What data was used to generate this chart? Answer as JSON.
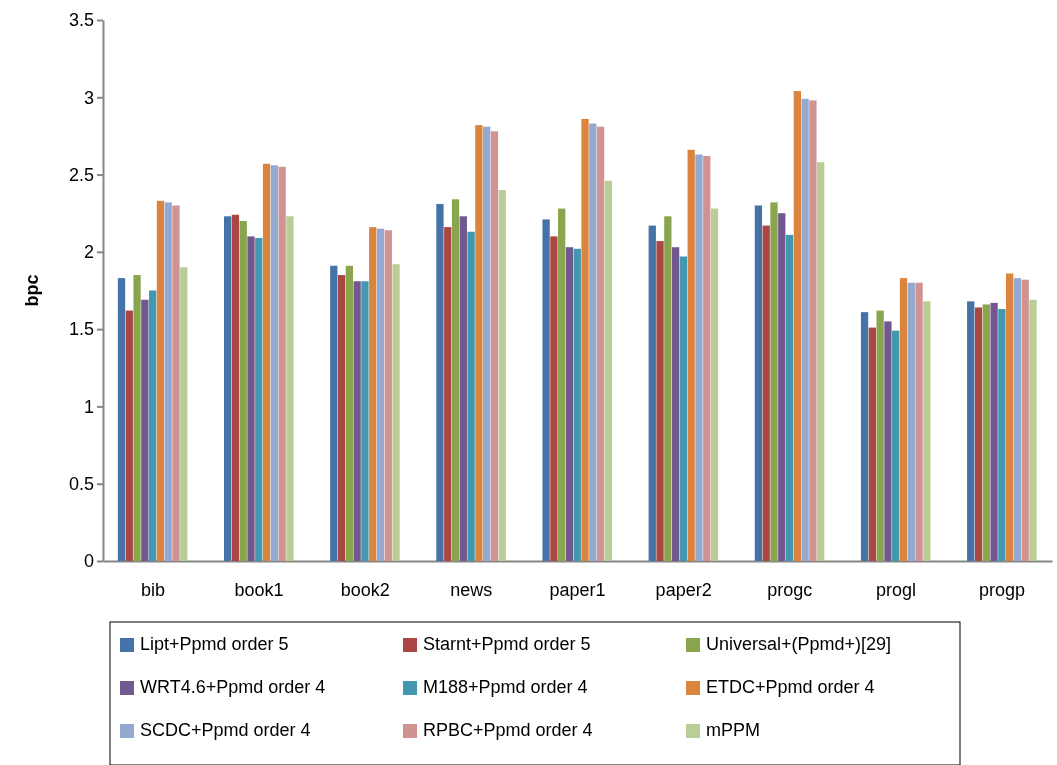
{
  "chart_data": {
    "type": "bar",
    "ylabel": "bpc",
    "categories": [
      "bib",
      "book1",
      "book2",
      "news",
      "paper1",
      "paper2",
      "progc",
      "progl",
      "progp"
    ],
    "ylim": [
      0,
      3.5
    ],
    "yticks": [
      0,
      0.5,
      1,
      1.5,
      2,
      2.5,
      3,
      3.5
    ],
    "grid": false,
    "legend": "bottom",
    "series": [
      {
        "name": "Lipt+Ppmd order 5",
        "color": "#4572a7",
        "values": [
          1.83,
          2.23,
          1.91,
          2.31,
          2.21,
          2.17,
          2.3,
          1.61,
          1.68
        ]
      },
      {
        "name": "Starnt+Ppmd order 5",
        "color": "#aa4643",
        "values": [
          1.62,
          2.24,
          1.85,
          2.16,
          2.1,
          2.07,
          2.17,
          1.51,
          1.64
        ]
      },
      {
        "name": "Universal+(Ppmd+)[29]",
        "color": "#89a54e",
        "values": [
          1.85,
          2.2,
          1.91,
          2.34,
          2.28,
          2.23,
          2.32,
          1.62,
          1.66
        ]
      },
      {
        "name": "WRT4.6+Ppmd order 4",
        "color": "#71588f",
        "values": [
          1.69,
          2.1,
          1.81,
          2.23,
          2.03,
          2.03,
          2.25,
          1.55,
          1.67
        ]
      },
      {
        "name": "M188+Ppmd order 4",
        "color": "#4198af",
        "values": [
          1.75,
          2.09,
          1.81,
          2.13,
          2.02,
          1.97,
          2.11,
          1.49,
          1.63
        ]
      },
      {
        "name": "ETDC+Ppmd order 4",
        "color": "#db843d",
        "values": [
          2.33,
          2.57,
          2.16,
          2.82,
          2.86,
          2.66,
          3.04,
          1.83,
          1.86
        ]
      },
      {
        "name": "SCDC+Ppmd order 4",
        "color": "#93a9cf",
        "values": [
          2.32,
          2.56,
          2.15,
          2.81,
          2.83,
          2.63,
          2.99,
          1.8,
          1.83
        ]
      },
      {
        "name": "RPBC+Ppmd order 4",
        "color": "#d19392",
        "values": [
          2.3,
          2.55,
          2.14,
          2.78,
          2.81,
          2.62,
          2.98,
          1.8,
          1.82
        ]
      },
      {
        "name": "mPPM",
        "color": "#b9cd96",
        "values": [
          1.9,
          2.23,
          1.92,
          2.4,
          2.46,
          2.28,
          2.58,
          1.68,
          1.69
        ]
      }
    ]
  }
}
